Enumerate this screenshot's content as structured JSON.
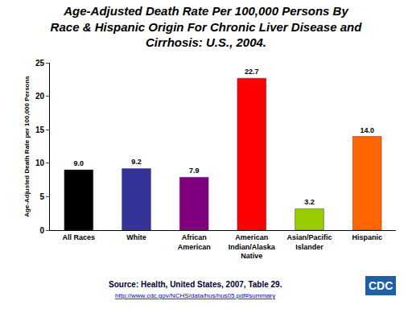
{
  "chart_data": {
    "type": "bar",
    "title": "Age-Adjusted Death Rate Per 100,000 Persons By\nRace & Hispanic Origin For Chronic Liver Disease and\nCirrhosis: U.S., 2004.",
    "y_label": "Age-Adjusted Death Rate per 100,000 Persons",
    "categories": [
      "All Races",
      "White",
      "African\nAmerican",
      "American\nIndian/Alaska\nNative",
      "Asian/Pacific\nIslander",
      "Hispanic"
    ],
    "values": [
      9.0,
      9.2,
      7.9,
      22.7,
      3.2,
      14.0
    ],
    "value_labels": [
      "9.0",
      "9.2",
      "7.9",
      "22.7",
      "3.2",
      "14.0"
    ],
    "colors": [
      "#000000",
      "#333399",
      "#800080",
      "#ff0000",
      "#99cc00",
      "#ff6600"
    ],
    "ylim": [
      0,
      25
    ],
    "yticks": [
      0,
      5,
      10,
      15,
      20,
      25
    ],
    "grid": false,
    "data_labels": true,
    "source": "Source: Health, United States, 2007, Table 29.",
    "source_url": "http://www.cdc.gov/NCHS/data/hus/hus05.pdf#summary",
    "logo_text": "CDC"
  }
}
